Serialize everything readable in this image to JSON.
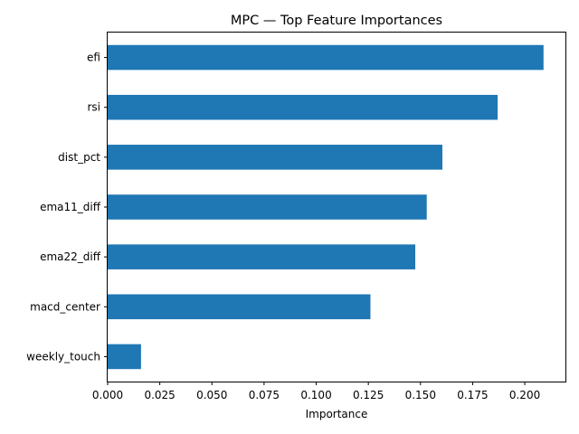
{
  "chart_data": {
    "type": "bar",
    "orientation": "horizontal",
    "title": "MPC — Top Feature Importances",
    "xlabel": "Importance",
    "ylabel": "",
    "categories": [
      "efi",
      "rsi",
      "dist_pct",
      "ema11_diff",
      "ema22_diff",
      "macd_center",
      "weekly_touch"
    ],
    "values": [
      0.209,
      0.187,
      0.1605,
      0.153,
      0.1475,
      0.126,
      0.016
    ],
    "xlim": [
      0.0,
      0.2195
    ],
    "xticks": [
      0.0,
      0.025,
      0.05,
      0.075,
      0.1,
      0.125,
      0.15,
      0.175,
      0.2
    ],
    "xtick_labels": [
      "0.000",
      "0.025",
      "0.050",
      "0.075",
      "0.100",
      "0.125",
      "0.150",
      "0.175",
      "0.200"
    ],
    "bar_color": "#1f77b4",
    "grid": false,
    "legend": "none"
  }
}
